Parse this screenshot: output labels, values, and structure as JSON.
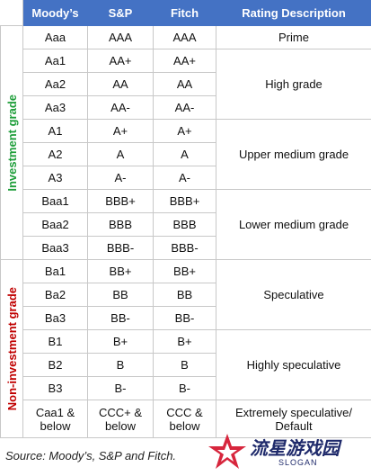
{
  "header": [
    "Moody’s",
    "S&P",
    "Fitch",
    "Rating Description"
  ],
  "groups": [
    {
      "label": "Investment grade",
      "tiers": [
        {
          "description": "Prime",
          "ratings": [
            [
              "Aaa",
              "AAA",
              "AAA"
            ]
          ]
        },
        {
          "description": "High grade",
          "ratings": [
            [
              "Aa1",
              "AA+",
              "AA+"
            ],
            [
              "Aa2",
              "AA",
              "AA"
            ],
            [
              "Aa3",
              "AA-",
              "AA-"
            ]
          ]
        },
        {
          "description": "Upper medium grade",
          "ratings": [
            [
              "A1",
              "A+",
              "A+"
            ],
            [
              "A2",
              "A",
              "A"
            ],
            [
              "A3",
              "A-",
              "A-"
            ]
          ]
        },
        {
          "description": "Lower medium grade",
          "ratings": [
            [
              "Baa1",
              "BBB+",
              "BBB+"
            ],
            [
              "Baa2",
              "BBB",
              "BBB"
            ],
            [
              "Baa3",
              "BBB-",
              "BBB-"
            ]
          ]
        }
      ]
    },
    {
      "label": "Non-investment grade",
      "tiers": [
        {
          "description": "Speculative",
          "ratings": [
            [
              "Ba1",
              "BB+",
              "BB+"
            ],
            [
              "Ba2",
              "BB",
              "BB"
            ],
            [
              "Ba3",
              "BB-",
              "BB-"
            ]
          ]
        },
        {
          "description": "Highly speculative",
          "ratings": [
            [
              "B1",
              "B+",
              "B+"
            ],
            [
              "B2",
              "B",
              "B"
            ],
            [
              "B3",
              "B-",
              "B-"
            ]
          ]
        },
        {
          "description": "Extremely speculative/ Default",
          "ratings": [
            [
              "Caa1 & below",
              "CCC+ & below",
              "CCC & below"
            ]
          ]
        }
      ]
    }
  ],
  "source": "Source: Moody’s, S&P and Fitch.",
  "watermark": {
    "title": "流星游戏园",
    "subtitle": "SLOGAN"
  }
}
